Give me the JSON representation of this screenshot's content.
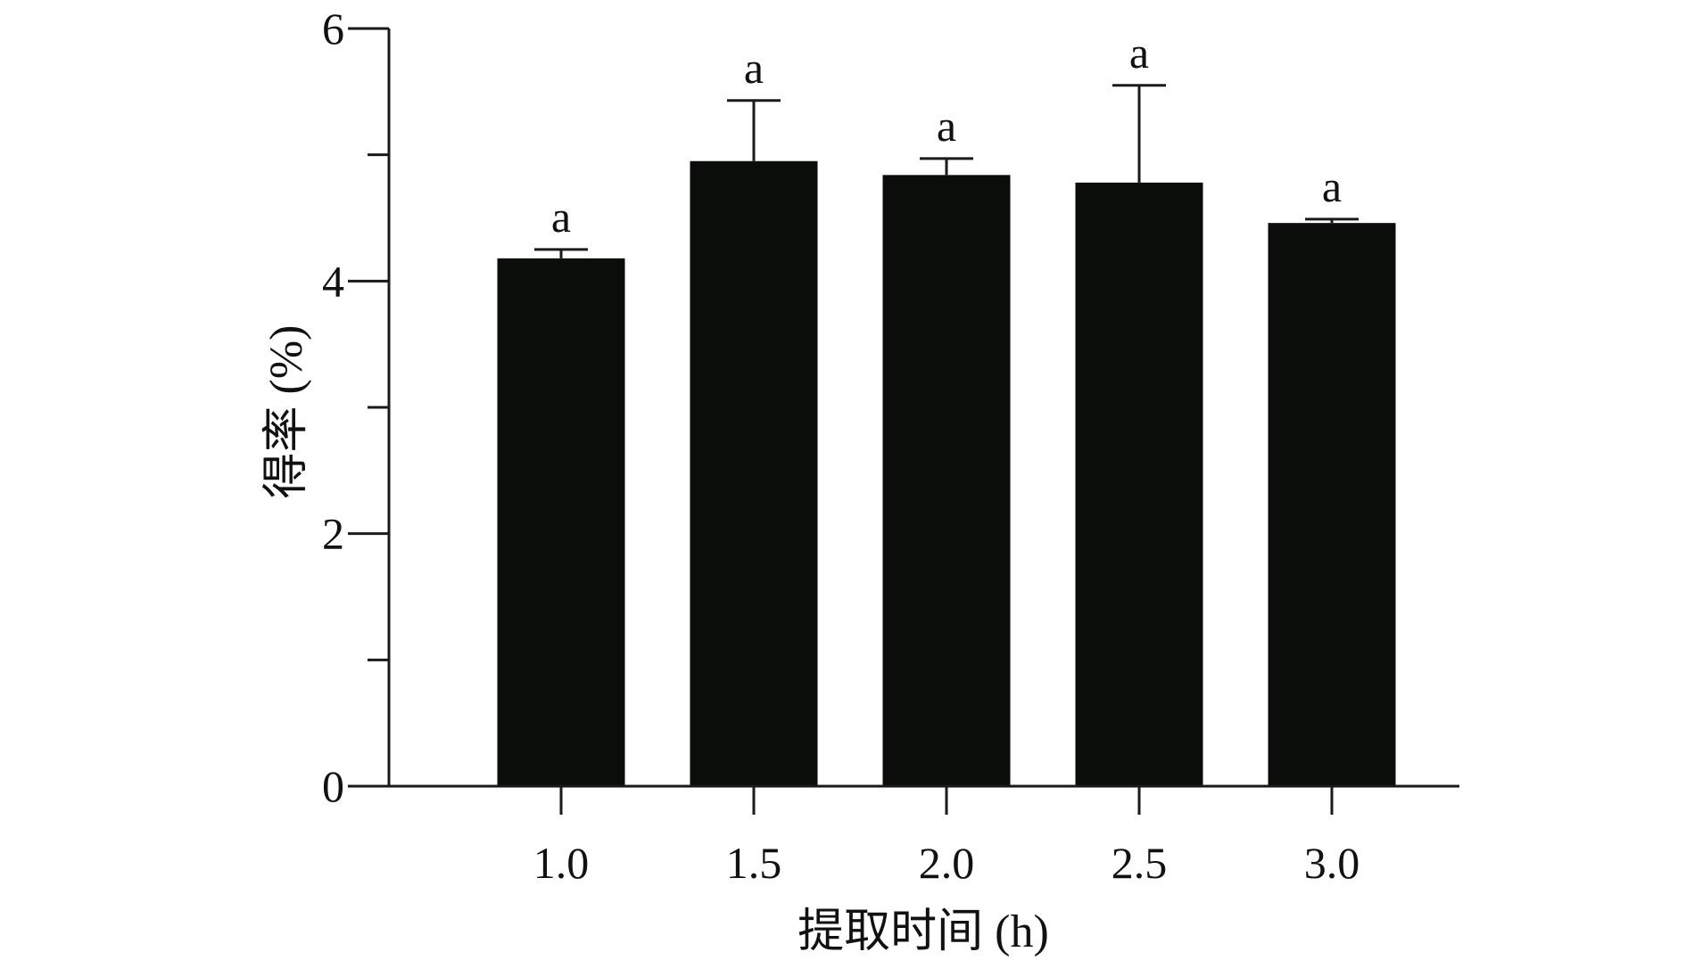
{
  "chart_data": {
    "type": "bar",
    "categories": [
      "1.0",
      "1.5",
      "2.0",
      "2.5",
      "3.0"
    ],
    "values": [
      4.18,
      4.95,
      4.84,
      4.78,
      4.46
    ],
    "error": [
      0.07,
      0.48,
      0.13,
      0.77,
      0.03
    ],
    "annotations": [
      "a",
      "a",
      "a",
      "a",
      "a"
    ],
    "xlabel": "提取时间 (h)",
    "ylabel": "得率 (%)",
    "ylim": [
      0,
      6
    ],
    "yticks_major": [
      0,
      2,
      4,
      6
    ],
    "yticks_minor": [
      1,
      3,
      5
    ],
    "colors": {
      "bar": "#0b0d0b",
      "axis": "#1a1a1a"
    },
    "grid": false,
    "legend": "none"
  }
}
